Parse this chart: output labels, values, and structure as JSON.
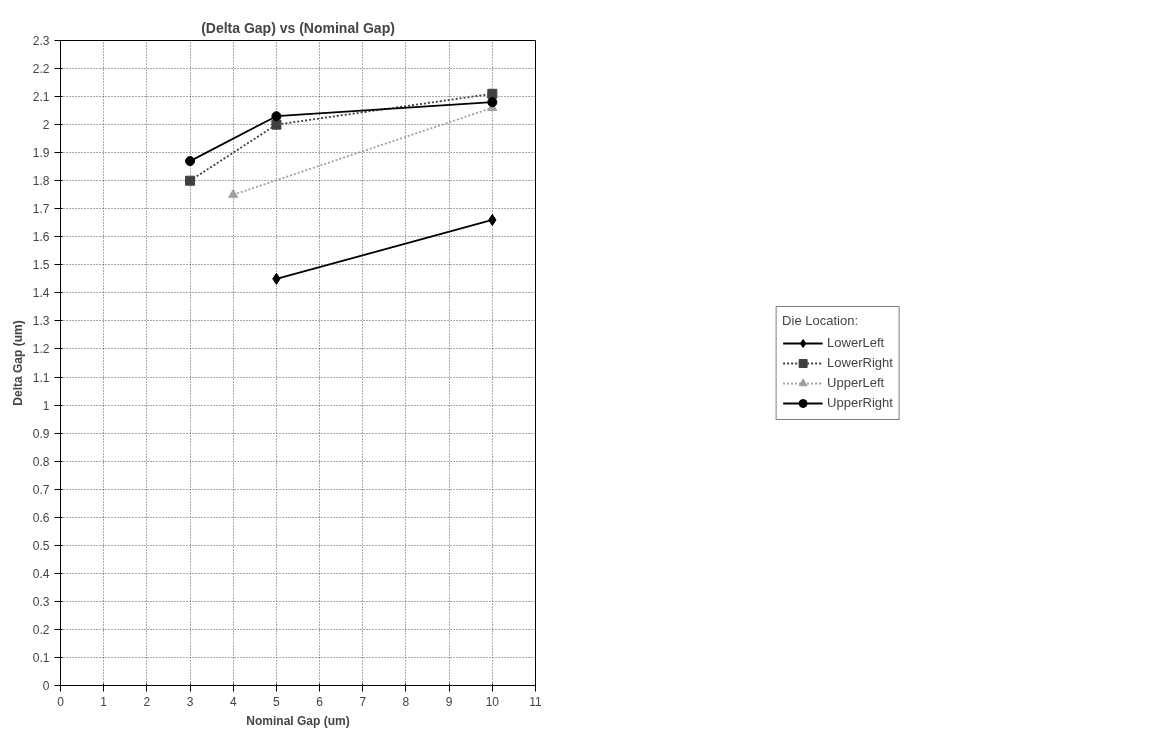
{
  "chart_data": {
    "type": "line",
    "title": "(Delta Gap) vs (Nominal Gap)",
    "xlabel": "Nominal Gap (um)",
    "ylabel": "Delta Gap (um)",
    "legend_title": "Die Location:",
    "xlim": [
      0,
      11
    ],
    "xticks": [
      0,
      1,
      2,
      3,
      4,
      5,
      6,
      7,
      8,
      9,
      10,
      11
    ],
    "ylim": [
      0,
      2.3
    ],
    "yticks": [
      0,
      0.1,
      0.2,
      0.3,
      0.4,
      0.5,
      0.6,
      0.7,
      0.8,
      0.9,
      1,
      1.1,
      1.2,
      1.3,
      1.4,
      1.5,
      1.6,
      1.7,
      1.8,
      1.9,
      2,
      2.1,
      2.2,
      2.3
    ],
    "grid": true,
    "legend": "right",
    "series": [
      {
        "name": "LowerLeft",
        "color": "#000000",
        "marker": "diamond",
        "line_style": "solid",
        "x": [
          5,
          10
        ],
        "values": [
          1.45,
          1.66
        ]
      },
      {
        "name": "LowerRight",
        "color": "#404040",
        "marker": "square",
        "line_style": "dotted",
        "x": [
          3,
          5,
          10
        ],
        "values": [
          1.8,
          2.0,
          2.11
        ]
      },
      {
        "name": "UpperLeft",
        "color": "#a0a0a0",
        "marker": "triangle",
        "line_style": "dotted",
        "x": [
          4,
          10
        ],
        "values": [
          1.75,
          2.06
        ]
      },
      {
        "name": "UpperRight",
        "color": "#000000",
        "marker": "circle",
        "line_style": "solid",
        "x": [
          3,
          5,
          10
        ],
        "values": [
          1.87,
          2.03,
          2.08
        ]
      }
    ]
  }
}
